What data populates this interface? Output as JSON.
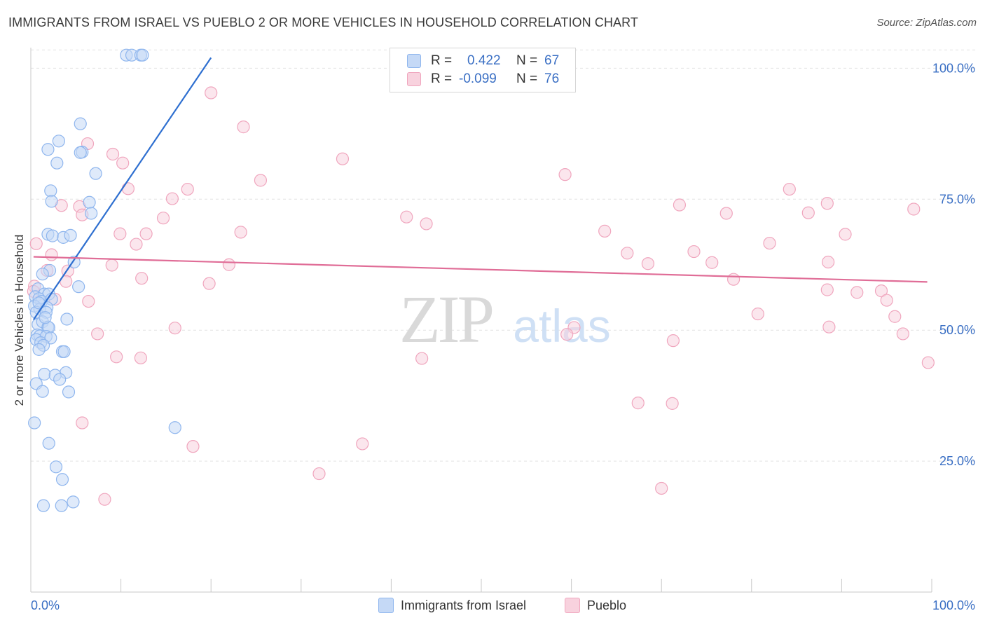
{
  "header": {
    "title": "IMMIGRANTS FROM ISRAEL VS PUEBLO 2 OR MORE VEHICLES IN HOUSEHOLD CORRELATION CHART",
    "source": "Source: ZipAtlas.com"
  },
  "watermark": {
    "zip": "ZIP",
    "atlas": "atlas"
  },
  "legend": {
    "rows": [
      {
        "r_label": "R =",
        "r_value": "0.422",
        "n_label": "N =",
        "n_value": "67",
        "color": "#8fb6ee",
        "fill": "#c5d9f6"
      },
      {
        "r_label": "R =",
        "r_value": "-0.099",
        "n_label": "N =",
        "n_value": "76",
        "color": "#f0a6be",
        "fill": "#f8d2de"
      }
    ]
  },
  "bottom_legend": {
    "items": [
      {
        "label": "Immigrants from Israel",
        "color": "#8fb6ee",
        "fill": "#c5d9f6"
      },
      {
        "label": "Pueblo",
        "color": "#f0a6be",
        "fill": "#f8d2de"
      }
    ]
  },
  "chart_data": {
    "type": "scatter",
    "ylabel": "2 or more Vehicles in Household",
    "xlim": [
      0,
      100
    ],
    "ylim": [
      0,
      105
    ],
    "x_tick_labels": [
      {
        "value": 0,
        "label": "0.0%"
      },
      {
        "value": 100,
        "label": "100.0%"
      }
    ],
    "x_minor_ticks": [
      0,
      10,
      20,
      30,
      40,
      50,
      60,
      70,
      80,
      90,
      100
    ],
    "y_ticks": [
      {
        "value": 25,
        "label": "25.0%"
      },
      {
        "value": 50,
        "label": "50.0%"
      },
      {
        "value": 75,
        "label": "75.0%"
      },
      {
        "value": 100,
        "label": "100.0%"
      }
    ],
    "grid": true,
    "series": [
      {
        "name": "Immigrants from Israel",
        "color": "#8fb6ee",
        "fill": "#c5d9f6",
        "trend_color": "#2e6fd0",
        "trend": [
          [
            0.3,
            52
          ],
          [
            20,
            102
          ]
        ],
        "points": [
          [
            10.6,
            102.5
          ],
          [
            11.2,
            102.5
          ],
          [
            12.2,
            102.5
          ],
          [
            12.4,
            102.5
          ],
          [
            5.5,
            89.4
          ],
          [
            3.1,
            86.1
          ],
          [
            1.9,
            84.5
          ],
          [
            5.7,
            84.0
          ],
          [
            5.5,
            83.9
          ],
          [
            2.9,
            81.9
          ],
          [
            7.2,
            79.9
          ],
          [
            2.2,
            76.6
          ],
          [
            6.5,
            74.4
          ],
          [
            2.3,
            74.6
          ],
          [
            6.7,
            72.3
          ],
          [
            1.9,
            68.3
          ],
          [
            2.4,
            68.0
          ],
          [
            3.6,
            67.7
          ],
          [
            4.4,
            68.1
          ],
          [
            4.8,
            63.0
          ],
          [
            2.1,
            61.4
          ],
          [
            1.3,
            60.7
          ],
          [
            5.3,
            58.3
          ],
          [
            0.8,
            57.9
          ],
          [
            0.5,
            56.4
          ],
          [
            1.5,
            56.9
          ],
          [
            2.0,
            56.9
          ],
          [
            0.9,
            56.0
          ],
          [
            1.2,
            55.5
          ],
          [
            2.3,
            55.9
          ],
          [
            0.4,
            54.6
          ],
          [
            1.0,
            54.0
          ],
          [
            1.8,
            54.3
          ],
          [
            0.6,
            53.4
          ],
          [
            1.7,
            53.4
          ],
          [
            4.0,
            52.1
          ],
          [
            0.8,
            51.1
          ],
          [
            1.3,
            51.6
          ],
          [
            1.9,
            50.6
          ],
          [
            2.0,
            50.5
          ],
          [
            0.7,
            49.1
          ],
          [
            1.0,
            48.9
          ],
          [
            1.7,
            48.8
          ],
          [
            2.2,
            48.5
          ],
          [
            0.6,
            48.2
          ],
          [
            1.1,
            47.6
          ],
          [
            1.4,
            47.1
          ],
          [
            0.9,
            46.3
          ],
          [
            3.5,
            45.9
          ],
          [
            3.7,
            45.9
          ],
          [
            3.9,
            41.9
          ],
          [
            1.5,
            41.6
          ],
          [
            2.7,
            41.4
          ],
          [
            3.2,
            40.6
          ],
          [
            0.6,
            39.8
          ],
          [
            1.3,
            38.3
          ],
          [
            4.2,
            38.2
          ],
          [
            0.4,
            32.3
          ],
          [
            16.0,
            31.4
          ],
          [
            2.0,
            28.4
          ],
          [
            2.8,
            23.9
          ],
          [
            3.5,
            21.5
          ],
          [
            4.7,
            17.2
          ],
          [
            1.4,
            16.5
          ],
          [
            3.4,
            16.5
          ],
          [
            0.9,
            55.2
          ],
          [
            1.6,
            52.4
          ]
        ]
      },
      {
        "name": "Pueblo",
        "color": "#f0a6be",
        "fill": "#f8d2de",
        "trend_color": "#e06d97",
        "trend": [
          [
            0.3,
            64.0
          ],
          [
            99.5,
            59.2
          ]
        ],
        "points": [
          [
            45.0,
            98.4
          ],
          [
            46.0,
            98.4
          ],
          [
            20.0,
            95.3
          ],
          [
            23.6,
            88.8
          ],
          [
            6.3,
            85.6
          ],
          [
            9.1,
            83.6
          ],
          [
            10.2,
            81.9
          ],
          [
            34.6,
            82.7
          ],
          [
            25.5,
            78.6
          ],
          [
            59.3,
            79.7
          ],
          [
            10.8,
            77.0
          ],
          [
            17.4,
            76.9
          ],
          [
            15.7,
            75.1
          ],
          [
            3.4,
            73.8
          ],
          [
            5.4,
            73.6
          ],
          [
            72.0,
            73.9
          ],
          [
            84.2,
            76.9
          ],
          [
            88.4,
            74.2
          ],
          [
            98.0,
            73.1
          ],
          [
            5.7,
            72.0
          ],
          [
            14.7,
            71.4
          ],
          [
            41.7,
            71.6
          ],
          [
            77.2,
            72.3
          ],
          [
            86.3,
            72.4
          ],
          [
            43.9,
            70.3
          ],
          [
            23.3,
            68.7
          ],
          [
            12.8,
            68.4
          ],
          [
            9.9,
            68.4
          ],
          [
            63.7,
            68.9
          ],
          [
            90.4,
            68.3
          ],
          [
            0.6,
            66.5
          ],
          [
            11.7,
            66.4
          ],
          [
            82.0,
            66.6
          ],
          [
            2.3,
            64.4
          ],
          [
            73.6,
            65.0
          ],
          [
            66.2,
            64.7
          ],
          [
            68.5,
            62.7
          ],
          [
            22.0,
            62.5
          ],
          [
            9.0,
            62.4
          ],
          [
            75.6,
            62.9
          ],
          [
            88.5,
            63.0
          ],
          [
            4.1,
            61.3
          ],
          [
            1.8,
            61.4
          ],
          [
            12.3,
            59.9
          ],
          [
            78.0,
            59.7
          ],
          [
            3.9,
            59.3
          ],
          [
            19.8,
            58.9
          ],
          [
            0.4,
            58.4
          ],
          [
            0.3,
            57.4
          ],
          [
            2.7,
            55.9
          ],
          [
            88.4,
            57.7
          ],
          [
            91.7,
            57.2
          ],
          [
            94.4,
            57.5
          ],
          [
            95.0,
            55.7
          ],
          [
            6.4,
            55.5
          ],
          [
            80.7,
            53.1
          ],
          [
            95.9,
            52.6
          ],
          [
            16.0,
            50.4
          ],
          [
            60.3,
            50.5
          ],
          [
            7.4,
            49.3
          ],
          [
            59.5,
            49.2
          ],
          [
            96.8,
            49.3
          ],
          [
            71.3,
            48.0
          ],
          [
            43.4,
            44.6
          ],
          [
            9.5,
            44.9
          ],
          [
            12.2,
            44.7
          ],
          [
            67.4,
            36.1
          ],
          [
            71.2,
            36.0
          ],
          [
            5.7,
            32.3
          ],
          [
            18.0,
            27.8
          ],
          [
            36.8,
            28.3
          ],
          [
            32.0,
            22.6
          ],
          [
            70.0,
            19.8
          ],
          [
            8.2,
            17.7
          ],
          [
            99.6,
            43.8
          ],
          [
            88.6,
            50.6
          ]
        ]
      }
    ]
  }
}
